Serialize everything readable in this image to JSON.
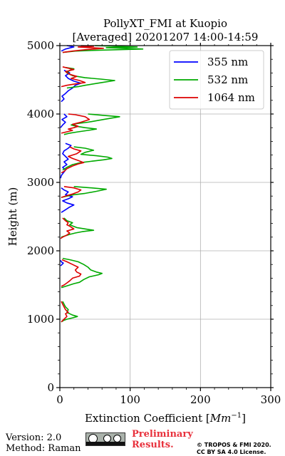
{
  "chart_data": {
    "type": "line",
    "title": "PollyXT_FMI at Kuopio",
    "subtitle": "[Averaged] 20201207 14:00-14:59",
    "xlabel_prefix": "Extinction Coefficient [",
    "xlabel_unit": "Mm",
    "xlabel_exp": "−1",
    "xlabel_suffix": "]",
    "ylabel": "Height (m)",
    "xlim": [
      0,
      300
    ],
    "ylim": [
      0,
      5000
    ],
    "xticks": [
      "0",
      "100",
      "200",
      "300"
    ],
    "yticks": [
      "0",
      "1000",
      "2000",
      "3000",
      "4000",
      "5000"
    ],
    "grid": true,
    "legend_position": "top-right",
    "series": [
      {
        "name": "355 nm",
        "color": "#0000ff",
        "segments": [
          [
            [
              1,
              1780
            ],
            [
              3,
              1800
            ],
            [
              5,
              1820
            ],
            [
              2,
              1840
            ],
            [
              1,
              1860
            ]
          ],
          [
            [
              2,
              2560
            ],
            [
              8,
              2600
            ],
            [
              14,
              2640
            ],
            [
              20,
              2670
            ],
            [
              10,
              2700
            ],
            [
              4,
              2730
            ],
            [
              12,
              2760
            ],
            [
              18,
              2790
            ],
            [
              8,
              2820
            ],
            [
              12,
              2860
            ],
            [
              6,
              2890
            ],
            [
              2,
              2920
            ]
          ],
          [
            [
              1,
              3060
            ],
            [
              2,
              3100
            ],
            [
              5,
              3140
            ],
            [
              8,
              3180
            ],
            [
              4,
              3220
            ],
            [
              10,
              3260
            ],
            [
              6,
              3300
            ],
            [
              12,
              3340
            ],
            [
              8,
              3380
            ],
            [
              4,
              3420
            ],
            [
              6,
              3460
            ],
            [
              12,
              3500
            ],
            [
              16,
              3540
            ],
            [
              8,
              3570
            ]
          ],
          [
            [
              1,
              3800
            ],
            [
              4,
              3840
            ],
            [
              8,
              3880
            ],
            [
              3,
              3920
            ],
            [
              10,
              3960
            ],
            [
              6,
              4000
            ]
          ],
          [
            [
              2,
              4180
            ],
            [
              6,
              4220
            ],
            [
              3,
              4260
            ],
            [
              8,
              4300
            ],
            [
              12,
              4340
            ],
            [
              18,
              4380
            ],
            [
              22,
              4420
            ],
            [
              30,
              4450
            ],
            [
              20,
              4480
            ],
            [
              12,
              4520
            ],
            [
              8,
              4560
            ],
            [
              14,
              4600
            ],
            [
              6,
              4640
            ]
          ],
          [
            [
              2,
              4920
            ],
            [
              8,
              4950
            ],
            [
              20,
              4980
            ],
            [
              10,
              5000
            ]
          ]
        ]
      },
      {
        "name": "532 nm",
        "color": "#00aa00",
        "segments": [
          [
            [
              2,
              960
            ],
            [
              5,
              980
            ],
            [
              10,
              1000
            ],
            [
              18,
              1020
            ],
            [
              25,
              1040
            ],
            [
              18,
              1060
            ],
            [
              14,
              1080
            ],
            [
              10,
              1100
            ],
            [
              12,
              1140
            ],
            [
              8,
              1180
            ],
            [
              6,
              1220
            ],
            [
              4,
              1260
            ]
          ],
          [
            [
              2,
              1460
            ],
            [
              8,
              1480
            ],
            [
              14,
              1500
            ],
            [
              20,
              1520
            ],
            [
              28,
              1540
            ],
            [
              34,
              1580
            ],
            [
              42,
              1620
            ],
            [
              55,
              1650
            ],
            [
              60,
              1670
            ],
            [
              52,
              1690
            ],
            [
              44,
              1720
            ],
            [
              40,
              1760
            ],
            [
              34,
              1800
            ],
            [
              26,
              1840
            ],
            [
              14,
              1870
            ],
            [
              4,
              1890
            ]
          ],
          [
            [
              2,
              2200
            ],
            [
              8,
              2220
            ],
            [
              14,
              2240
            ],
            [
              22,
              2260
            ],
            [
              32,
              2280
            ],
            [
              48,
              2300
            ],
            [
              36,
              2320
            ],
            [
              24,
              2340
            ],
            [
              14,
              2380
            ],
            [
              18,
              2410
            ],
            [
              10,
              2440
            ],
            [
              6,
              2480
            ]
          ],
          [
            [
              2,
              2780
            ],
            [
              10,
              2800
            ],
            [
              20,
              2820
            ],
            [
              36,
              2840
            ],
            [
              52,
              2870
            ],
            [
              66,
              2900
            ],
            [
              45,
              2920
            ],
            [
              20,
              2940
            ]
          ],
          [
            [
              4,
              3180
            ],
            [
              10,
              3220
            ],
            [
              18,
              3260
            ],
            [
              30,
              3290
            ],
            [
              46,
              3310
            ],
            [
              62,
              3330
            ],
            [
              74,
              3350
            ],
            [
              68,
              3370
            ],
            [
              52,
              3390
            ],
            [
              30,
              3410
            ],
            [
              36,
              3440
            ],
            [
              48,
              3470
            ],
            [
              36,
              3500
            ],
            [
              20,
              3520
            ]
          ],
          [
            [
              6,
              3700
            ],
            [
              14,
              3720
            ],
            [
              26,
              3740
            ],
            [
              40,
              3760
            ],
            [
              52,
              3780
            ],
            [
              36,
              3800
            ],
            [
              24,
              3820
            ],
            [
              16,
              3840
            ],
            [
              24,
              3860
            ],
            [
              40,
              3880
            ],
            [
              62,
              3920
            ],
            [
              85,
              3960
            ],
            [
              62,
              3980
            ],
            [
              40,
              4000
            ]
          ],
          [
            [
              10,
              4380
            ],
            [
              26,
              4400
            ],
            [
              36,
              4420
            ],
            [
              60,
              4460
            ],
            [
              78,
              4490
            ],
            [
              58,
              4510
            ],
            [
              36,
              4530
            ],
            [
              18,
              4560
            ],
            [
              10,
              4600
            ],
            [
              14,
              4640
            ],
            [
              20,
              4660
            ],
            [
              8,
              4680
            ]
          ],
          [
            [
              4,
              4900
            ],
            [
              22,
              4920
            ],
            [
              48,
              4930
            ],
            [
              80,
              4940
            ],
            [
              118,
              4950
            ],
            [
              92,
              4960
            ],
            [
              66,
              4970
            ],
            [
              110,
              4980
            ],
            [
              78,
              4990
            ],
            [
              50,
              5000
            ]
          ]
        ]
      },
      {
        "name": "1064 nm",
        "color": "#dd0000",
        "segments": [
          [
            [
              2,
              960
            ],
            [
              4,
              980
            ],
            [
              6,
              1000
            ],
            [
              10,
              1040
            ],
            [
              8,
              1080
            ],
            [
              12,
              1100
            ],
            [
              8,
              1140
            ],
            [
              6,
              1180
            ],
            [
              4,
              1220
            ],
            [
              2,
              1260
            ]
          ],
          [
            [
              2,
              1480
            ],
            [
              6,
              1500
            ],
            [
              10,
              1530
            ],
            [
              14,
              1560
            ],
            [
              18,
              1600
            ],
            [
              28,
              1630
            ],
            [
              30,
              1660
            ],
            [
              24,
              1690
            ],
            [
              22,
              1720
            ],
            [
              26,
              1760
            ],
            [
              18,
              1800
            ],
            [
              10,
              1840
            ],
            [
              3,
              1870
            ]
          ],
          [
            [
              1,
              2180
            ],
            [
              4,
              2200
            ],
            [
              10,
              2230
            ],
            [
              14,
              2260
            ],
            [
              10,
              2290
            ],
            [
              20,
              2320
            ],
            [
              14,
              2360
            ],
            [
              10,
              2380
            ],
            [
              12,
              2410
            ],
            [
              8,
              2440
            ],
            [
              4,
              2480
            ]
          ],
          [
            [
              2,
              2780
            ],
            [
              8,
              2800
            ],
            [
              18,
              2830
            ],
            [
              26,
              2860
            ],
            [
              30,
              2890
            ],
            [
              20,
              2920
            ],
            [
              6,
              2940
            ]
          ],
          [
            [
              2,
              3140
            ],
            [
              6,
              3160
            ],
            [
              10,
              3200
            ],
            [
              18,
              3240
            ],
            [
              26,
              3270
            ],
            [
              34,
              3290
            ],
            [
              26,
              3320
            ],
            [
              18,
              3350
            ],
            [
              12,
              3380
            ],
            [
              24,
              3420
            ],
            [
              30,
              3460
            ],
            [
              20,
              3490
            ],
            [
              14,
              3520
            ]
          ],
          [
            [
              2,
              3720
            ],
            [
              10,
              3740
            ],
            [
              18,
              3760
            ],
            [
              12,
              3780
            ],
            [
              20,
              3800
            ],
            [
              26,
              3820
            ],
            [
              18,
              3850
            ],
            [
              30,
              3880
            ],
            [
              42,
              3920
            ],
            [
              36,
              3960
            ],
            [
              22,
              3990
            ],
            [
              12,
              4000
            ]
          ],
          [
            [
              2,
              4400
            ],
            [
              10,
              4420
            ],
            [
              22,
              4440
            ],
            [
              36,
              4460
            ],
            [
              28,
              4490
            ],
            [
              16,
              4520
            ],
            [
              24,
              4550
            ],
            [
              14,
              4580
            ],
            [
              8,
              4620
            ],
            [
              20,
              4650
            ],
            [
              12,
              4670
            ],
            [
              4,
              4690
            ]
          ],
          [
            [
              4,
              4900
            ],
            [
              18,
              4920
            ],
            [
              36,
              4940
            ],
            [
              62,
              4960
            ],
            [
              44,
              4970
            ],
            [
              26,
              4980
            ],
            [
              48,
              4990
            ],
            [
              30,
              5000
            ]
          ]
        ]
      }
    ]
  },
  "footer": {
    "version": "Version: 2.0",
    "method": "Method: Raman",
    "preliminary": "Preliminary Results.",
    "copyright_line1": "© TROPOS & FMI 2020.",
    "copyright_line2": "CC BY SA 4.0 License."
  }
}
